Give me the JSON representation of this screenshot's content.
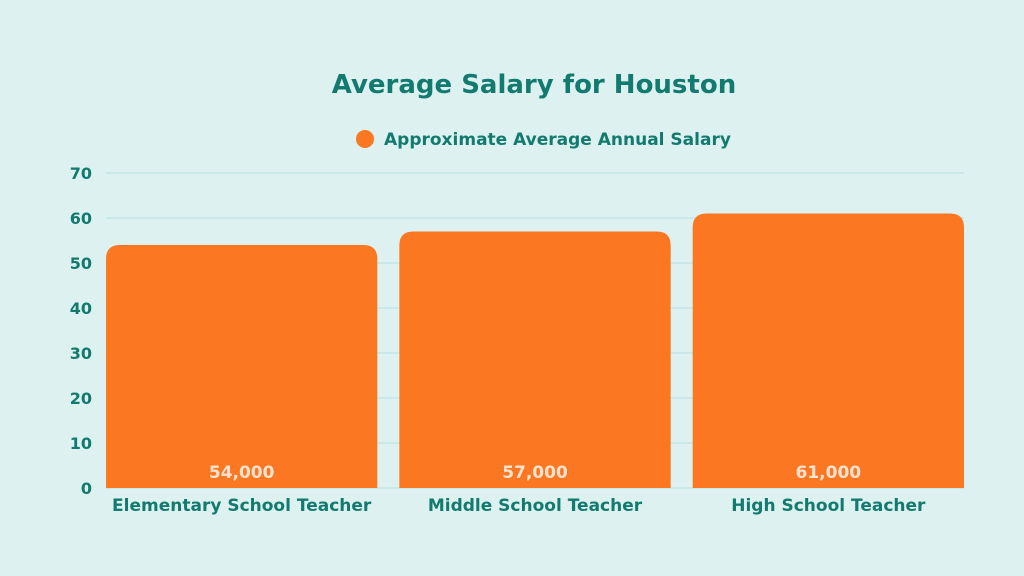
{
  "colors": {
    "background": "#dcf1f0",
    "text": "#127a6e",
    "bar": "#fc7722",
    "grid": "#b9dfe0",
    "value_label": "#fde3cf"
  },
  "chart_data": {
    "type": "bar",
    "title": "Average Salary for Houston",
    "categories": [
      "Elementary School Teacher",
      "Middle School Teacher",
      "High School Teacher"
    ],
    "series": [
      {
        "name": "Approximate Average Annual Salary",
        "values": [
          54,
          57,
          61
        ],
        "data_labels": [
          "54,000",
          "57,000",
          "61,000"
        ]
      }
    ],
    "y_ticks": [
      "0",
      "10",
      "20",
      "30",
      "40",
      "50",
      "60",
      "70"
    ],
    "ylim": [
      0,
      70
    ],
    "xlabel": "",
    "ylabel": "",
    "grid": true,
    "legend_position": "top-center"
  }
}
